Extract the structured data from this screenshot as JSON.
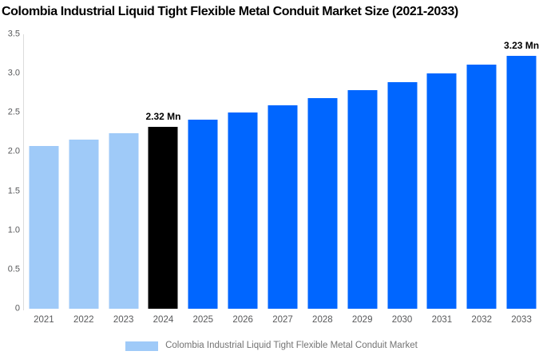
{
  "title": "Colombia Industrial Liquid Tight Flexible Metal Conduit Market Size (2021-2033)",
  "chart_data": {
    "type": "bar",
    "title": "Colombia Industrial Liquid Tight Flexible Metal Conduit Market Size (2021-2033)",
    "categories": [
      "2021",
      "2022",
      "2023",
      "2024",
      "2025",
      "2026",
      "2027",
      "2028",
      "2029",
      "2030",
      "2031",
      "2032",
      "2033"
    ],
    "values": [
      2.08,
      2.16,
      2.24,
      2.32,
      2.41,
      2.5,
      2.59,
      2.69,
      2.79,
      2.89,
      3.0,
      3.11,
      3.23
    ],
    "unit": "Mn",
    "bar_roles": [
      "historical",
      "historical",
      "historical",
      "highlight",
      "forecast",
      "forecast",
      "forecast",
      "forecast",
      "forecast",
      "forecast",
      "forecast",
      "forecast",
      "forecast"
    ],
    "annotations": [
      {
        "category": "2024",
        "text": "2.32 Mn"
      },
      {
        "category": "2033",
        "text": "3.23 Mn"
      }
    ],
    "ylim": [
      0,
      3.5
    ],
    "ytick_labels": [
      "3.5",
      "3.0",
      "2.5",
      "2.0",
      "1.5",
      "1.0",
      "0.5",
      "0"
    ],
    "grid": false,
    "legend": {
      "position": "bottom",
      "label": "Colombia Industrial Liquid Tight Flexible Metal Conduit Market"
    },
    "colors": {
      "historical": "#9fcaf8",
      "highlight": "#000000",
      "forecast": "#0066ff",
      "axis_line": "#dcdcdc",
      "tick_text": "#58595b",
      "legend_text": "#737373",
      "annotation_text": "#000000"
    }
  }
}
